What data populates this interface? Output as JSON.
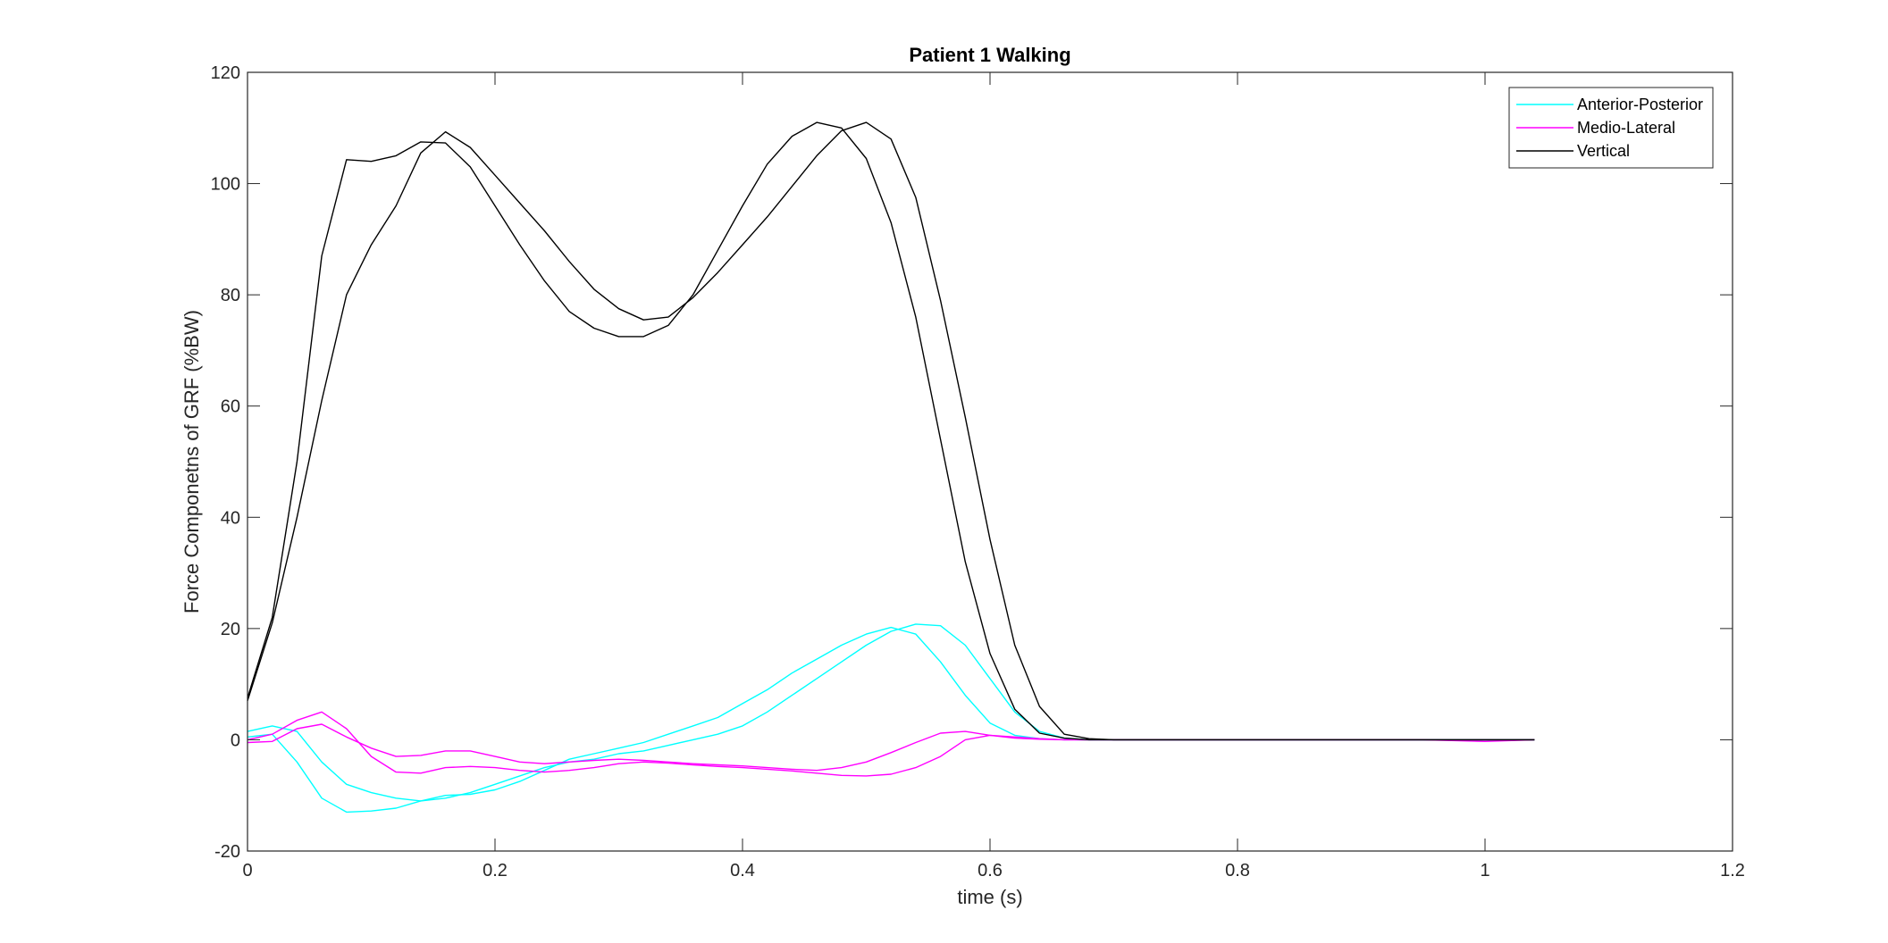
{
  "chart_data": {
    "type": "line",
    "title": "Patient 1 Walking",
    "xlabel": "time (s)",
    "ylabel": "Force Componetns of GRF (%BW)",
    "xlim": [
      0,
      1.2
    ],
    "ylim": [
      -20,
      120
    ],
    "xticks": [
      0,
      0.2,
      0.4,
      0.6,
      0.8,
      1,
      1.2
    ],
    "xtick_labels": [
      "0",
      "0.2",
      "0.4",
      "0.6",
      "0.8",
      "1",
      "1.2"
    ],
    "yticks": [
      -20,
      0,
      20,
      40,
      60,
      80,
      100,
      120
    ],
    "ytick_labels": [
      "-20",
      "0",
      "20",
      "40",
      "60",
      "80",
      "100",
      "120"
    ],
    "grid": false,
    "legend_position": "top-right",
    "series": [
      {
        "name": "Anterior-Posterior",
        "color": "#00ffff",
        "x": [
          0,
          0.02,
          0.04,
          0.06,
          0.08,
          0.1,
          0.12,
          0.14,
          0.16,
          0.18,
          0.2,
          0.22,
          0.24,
          0.26,
          0.28,
          0.3,
          0.32,
          0.34,
          0.36,
          0.38,
          0.4,
          0.42,
          0.44,
          0.46,
          0.48,
          0.5,
          0.52,
          0.54,
          0.56,
          0.58,
          0.6,
          0.62,
          0.64,
          0.66,
          0.68,
          0.7,
          0.75,
          0.8,
          0.85,
          0.9,
          0.95,
          1.0,
          1.04
        ],
        "y": [
          1.5,
          2.5,
          1.5,
          -4,
          -8,
          -9.5,
          -10.5,
          -11,
          -10.5,
          -9.5,
          -8,
          -6.5,
          -5,
          -4,
          -3.5,
          -2.5,
          -2,
          -1,
          0,
          1,
          2.5,
          5,
          8,
          11,
          14,
          17,
          19.5,
          20.8,
          20.5,
          17,
          11,
          5,
          1.5,
          0.3,
          0,
          0,
          0,
          0,
          0,
          0,
          0,
          0,
          0
        ]
      },
      {
        "name": "Anterior-Posterior",
        "color": "#00ffff",
        "x": [
          0,
          0.02,
          0.04,
          0.06,
          0.08,
          0.1,
          0.12,
          0.14,
          0.16,
          0.18,
          0.2,
          0.22,
          0.24,
          0.26,
          0.28,
          0.3,
          0.32,
          0.34,
          0.36,
          0.38,
          0.4,
          0.42,
          0.44,
          0.46,
          0.48,
          0.5,
          0.52,
          0.54,
          0.56,
          0.58,
          0.6,
          0.62,
          0.64,
          0.66,
          0.68,
          0.7,
          0.75,
          0.8,
          0.85,
          0.9,
          0.95,
          1.0,
          1.04
        ],
        "y": [
          0.5,
          1,
          -4,
          -10.5,
          -13,
          -12.8,
          -12.3,
          -11,
          -10,
          -9.8,
          -9,
          -7.5,
          -5.5,
          -3.5,
          -2.5,
          -1.5,
          -0.5,
          1,
          2.5,
          4,
          6.5,
          9,
          12,
          14.5,
          17,
          19,
          20.2,
          19,
          14,
          8,
          3,
          0.8,
          0.2,
          0,
          0,
          0,
          0,
          0,
          0,
          0,
          0,
          0,
          0
        ]
      },
      {
        "name": "Medio-Lateral",
        "color": "#ff00ff",
        "x": [
          0,
          0.02,
          0.04,
          0.06,
          0.08,
          0.1,
          0.12,
          0.14,
          0.16,
          0.18,
          0.2,
          0.22,
          0.24,
          0.26,
          0.28,
          0.3,
          0.32,
          0.34,
          0.36,
          0.38,
          0.4,
          0.42,
          0.44,
          0.46,
          0.48,
          0.5,
          0.52,
          0.54,
          0.56,
          0.58,
          0.6,
          0.62,
          0.64,
          0.66,
          0.68,
          0.7,
          0.75,
          0.8,
          0.85,
          0.9,
          0.95,
          1.0,
          1.04
        ],
        "y": [
          0,
          1,
          3.5,
          5,
          2,
          -3,
          -5.8,
          -6,
          -5,
          -4.8,
          -5,
          -5.5,
          -5.8,
          -5.5,
          -5,
          -4.3,
          -4,
          -4.2,
          -4.5,
          -4.8,
          -5,
          -5.3,
          -5.6,
          -6,
          -6.4,
          -6.5,
          -6.2,
          -5,
          -3,
          0,
          0.8,
          0.5,
          0.2,
          0,
          0,
          0,
          0,
          0,
          0,
          0,
          0,
          0,
          0
        ]
      },
      {
        "name": "Medio-Lateral",
        "color": "#ff00ff",
        "x": [
          0,
          0.02,
          0.04,
          0.06,
          0.08,
          0.1,
          0.12,
          0.14,
          0.16,
          0.18,
          0.2,
          0.22,
          0.24,
          0.26,
          0.28,
          0.3,
          0.32,
          0.34,
          0.36,
          0.38,
          0.4,
          0.42,
          0.44,
          0.46,
          0.48,
          0.5,
          0.52,
          0.54,
          0.56,
          0.58,
          0.6,
          0.62,
          0.64,
          0.66,
          0.68,
          0.7,
          0.75,
          0.8,
          0.85,
          0.9,
          0.95,
          1.0,
          1.04
        ],
        "y": [
          -0.5,
          -0.3,
          2,
          2.8,
          0.5,
          -1.5,
          -3,
          -2.8,
          -2,
          -2,
          -3,
          -4,
          -4.3,
          -4,
          -3.7,
          -3.5,
          -3.7,
          -4,
          -4.3,
          -4.5,
          -4.7,
          -5,
          -5.3,
          -5.5,
          -5,
          -4,
          -2.3,
          -0.5,
          1.2,
          1.5,
          0.8,
          0.3,
          0.1,
          0,
          0,
          0,
          0,
          0,
          0,
          0,
          0,
          -0.3,
          0
        ]
      },
      {
        "name": "Vertical",
        "color": "#000000",
        "x": [
          0,
          0.02,
          0.04,
          0.06,
          0.08,
          0.1,
          0.12,
          0.14,
          0.16,
          0.18,
          0.2,
          0.22,
          0.24,
          0.26,
          0.28,
          0.3,
          0.32,
          0.34,
          0.36,
          0.38,
          0.4,
          0.42,
          0.44,
          0.46,
          0.48,
          0.5,
          0.52,
          0.54,
          0.56,
          0.58,
          0.6,
          0.62,
          0.64,
          0.66,
          0.68,
          0.7,
          0.75,
          0.8,
          0.85,
          0.9,
          0.95,
          1.0,
          1.04
        ],
        "y": [
          7.5,
          22,
          50,
          87,
          104.3,
          104,
          105,
          107.5,
          107.3,
          103,
          96,
          89,
          82.5,
          77,
          74,
          72.5,
          72.5,
          74.5,
          80,
          88,
          96,
          103.5,
          108.5,
          111,
          110,
          104.5,
          93,
          76,
          54,
          32,
          15.5,
          5.5,
          1.2,
          0.3,
          0,
          0,
          0,
          0,
          0,
          0,
          0,
          0,
          0
        ]
      },
      {
        "name": "Vertical",
        "color": "#000000",
        "x": [
          0,
          0.02,
          0.04,
          0.06,
          0.08,
          0.1,
          0.12,
          0.14,
          0.16,
          0.18,
          0.2,
          0.22,
          0.24,
          0.26,
          0.28,
          0.3,
          0.32,
          0.34,
          0.36,
          0.38,
          0.4,
          0.42,
          0.44,
          0.46,
          0.48,
          0.5,
          0.52,
          0.54,
          0.56,
          0.58,
          0.6,
          0.62,
          0.64,
          0.66,
          0.68,
          0.7,
          0.75,
          0.8,
          0.85,
          0.9,
          0.95,
          1.0,
          1.04
        ],
        "y": [
          7,
          21,
          40,
          61,
          80,
          89,
          96,
          105.5,
          109.3,
          106.5,
          101.5,
          96.5,
          91.5,
          86,
          81,
          77.5,
          75.5,
          76,
          79.5,
          84,
          89,
          94,
          99.5,
          105,
          109.5,
          111,
          108,
          97.5,
          79,
          58,
          36,
          17,
          6,
          1,
          0.2,
          0,
          0,
          0,
          0,
          0,
          0,
          0,
          0
        ]
      }
    ],
    "legend": [
      {
        "label": "Anterior-Posterior",
        "color": "#00ffff"
      },
      {
        "label": "Medio-Lateral",
        "color": "#ff00ff"
      },
      {
        "label": "Vertical",
        "color": "#000000"
      }
    ]
  }
}
